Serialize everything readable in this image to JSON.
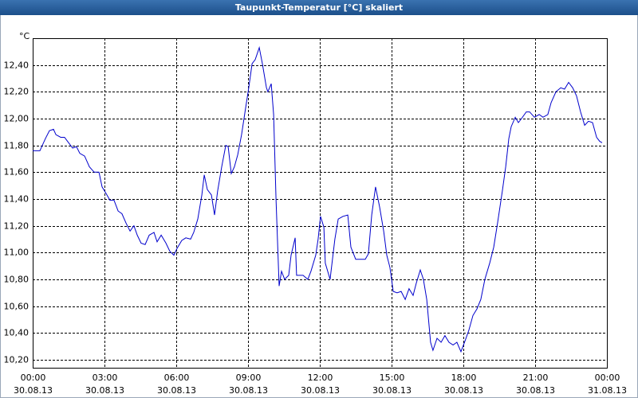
{
  "chart_data": {
    "type": "line",
    "title": "Taupunkt-Temperatur [°C] skaliert",
    "y_unit": "°C",
    "xlim": [
      0,
      24
    ],
    "xticks": [
      {
        "value": 0,
        "label": [
          "00:00",
          "30.08.13"
        ]
      },
      {
        "value": 3,
        "label": [
          "03:00",
          "30.08.13"
        ]
      },
      {
        "value": 6,
        "label": [
          "06:00",
          "30.08.13"
        ]
      },
      {
        "value": 9,
        "label": [
          "09:00",
          "30.08.13"
        ]
      },
      {
        "value": 12,
        "label": [
          "12:00",
          "30.08.13"
        ]
      },
      {
        "value": 15,
        "label": [
          "15:00",
          "30.08.13"
        ]
      },
      {
        "value": 18,
        "label": [
          "18:00",
          "30.08.13"
        ]
      },
      {
        "value": 21,
        "label": [
          "21:00",
          "30.08.13"
        ]
      },
      {
        "value": 24,
        "label": [
          "00:00",
          "31.08.13"
        ]
      }
    ],
    "ylim": [
      10.14,
      12.6
    ],
    "yticks": [
      {
        "value": 10.2,
        "label": "10,20"
      },
      {
        "value": 10.4,
        "label": "10,40"
      },
      {
        "value": 10.6,
        "label": "10,60"
      },
      {
        "value": 10.8,
        "label": "10,80"
      },
      {
        "value": 11.0,
        "label": "11,00"
      },
      {
        "value": 11.2,
        "label": "11,20"
      },
      {
        "value": 11.4,
        "label": "11,40"
      },
      {
        "value": 11.6,
        "label": "11,60"
      },
      {
        "value": 11.8,
        "label": "11,80"
      },
      {
        "value": 12.0,
        "label": "12,00"
      },
      {
        "value": 12.2,
        "label": "12,20"
      },
      {
        "value": 12.4,
        "label": "12,40"
      }
    ],
    "grid": true,
    "x": [
      0,
      0.3,
      0.53,
      0.7,
      0.87,
      0.97,
      1.17,
      1.33,
      1.5,
      1.67,
      1.83,
      1.97,
      2.17,
      2.37,
      2.57,
      2.77,
      2.9,
      3.07,
      3.23,
      3.4,
      3.57,
      3.73,
      3.9,
      4.07,
      4.23,
      4.37,
      4.53,
      4.7,
      4.87,
      5.07,
      5.2,
      5.37,
      5.57,
      5.73,
      5.9,
      6.03,
      6.23,
      6.4,
      6.6,
      6.73,
      6.9,
      7.07,
      7.17,
      7.3,
      7.47,
      7.6,
      7.73,
      7.9,
      8.07,
      8.17,
      8.3,
      8.43,
      8.57,
      8.73,
      8.9,
      9.03,
      9.17,
      9.3,
      9.47,
      9.6,
      9.77,
      9.83,
      9.97,
      10.07,
      10.17,
      10.3,
      10.4,
      10.53,
      10.7,
      10.8,
      10.97,
      11.03,
      11.17,
      11.3,
      11.5,
      11.63,
      11.83,
      11.93,
      12.03,
      12.17,
      12.23,
      12.43,
      12.63,
      12.77,
      12.97,
      13.17,
      13.3,
      13.5,
      13.7,
      13.9,
      14.03,
      14.17,
      14.33,
      14.5,
      14.67,
      14.8,
      14.93,
      15.07,
      15.23,
      15.4,
      15.57,
      15.73,
      15.9,
      16.03,
      16.2,
      16.33,
      16.47,
      16.63,
      16.73,
      16.9,
      17.07,
      17.23,
      17.4,
      17.57,
      17.73,
      17.9,
      18.07,
      18.23,
      18.4,
      18.57,
      18.73,
      18.9,
      19.1,
      19.27,
      19.43,
      19.63,
      19.77,
      19.9,
      20,
      20.17,
      20.3,
      20.43,
      20.63,
      20.77,
      20.97,
      21.17,
      21.33,
      21.53,
      21.67,
      21.87,
      22.07,
      22.23,
      22.4,
      22.57,
      22.73,
      22.9,
      23.07,
      23.23,
      23.4,
      23.57,
      23.7,
      23.8
    ],
    "series": [
      {
        "color": "#0000cc",
        "values": [
          11.76,
          11.76,
          11.85,
          11.91,
          11.92,
          11.88,
          11.86,
          11.86,
          11.82,
          11.78,
          11.79,
          11.74,
          11.72,
          11.64,
          11.6,
          11.6,
          11.49,
          11.44,
          11.39,
          11.39,
          11.31,
          11.29,
          11.22,
          11.16,
          11.2,
          11.13,
          11.07,
          11.06,
          11.13,
          11.15,
          11.08,
          11.13,
          11.07,
          11.01,
          10.98,
          11.03,
          11.09,
          11.11,
          11.1,
          11.15,
          11.25,
          11.43,
          11.58,
          11.47,
          11.43,
          11.28,
          11.46,
          11.64,
          11.8,
          11.79,
          11.59,
          11.64,
          11.73,
          11.88,
          12.08,
          12.23,
          12.41,
          12.44,
          12.53,
          12.41,
          12.23,
          12.2,
          12.26,
          12.03,
          11.4,
          10.75,
          10.86,
          10.8,
          10.83,
          10.98,
          11.11,
          10.83,
          10.83,
          10.83,
          10.8,
          10.86,
          10.98,
          11.1,
          11.27,
          11.19,
          10.92,
          10.8,
          11.1,
          11.25,
          11.27,
          11.28,
          11.04,
          10.95,
          10.95,
          10.95,
          10.99,
          11.28,
          11.49,
          11.34,
          11.16,
          10.98,
          10.89,
          10.71,
          10.7,
          10.71,
          10.65,
          10.73,
          10.68,
          10.77,
          10.87,
          10.8,
          10.65,
          10.33,
          10.27,
          10.36,
          10.33,
          10.38,
          10.33,
          10.31,
          10.33,
          10.26,
          10.34,
          10.42,
          10.53,
          10.58,
          10.65,
          10.8,
          10.92,
          11.04,
          11.22,
          11.46,
          11.64,
          11.85,
          11.94,
          12.01,
          11.97,
          12,
          12.05,
          12.05,
          12.01,
          12.03,
          12.01,
          12.03,
          12.12,
          12.2,
          12.23,
          12.22,
          12.27,
          12.23,
          12.17,
          12.05,
          11.95,
          11.98,
          11.97,
          11.86,
          11.83,
          11.82
        ]
      }
    ]
  }
}
